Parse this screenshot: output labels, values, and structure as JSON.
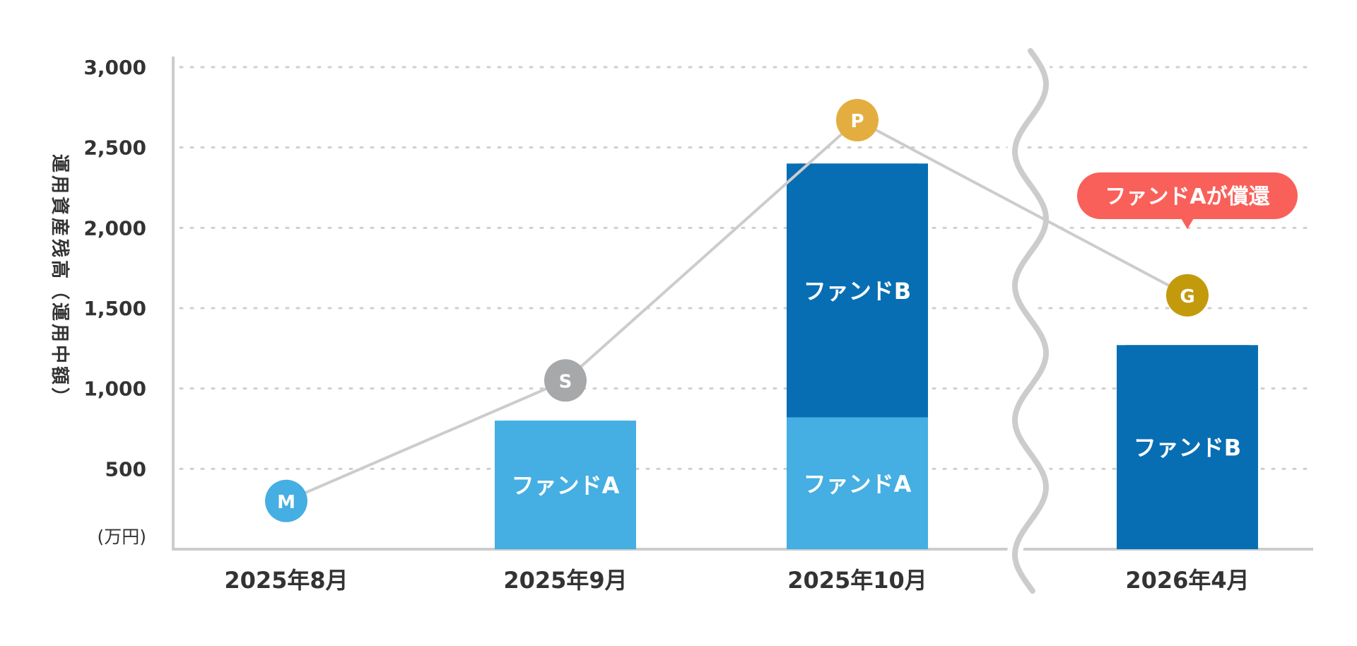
{
  "chart_data": {
    "type": "bar",
    "ylabel": "運用資産残高（運用中額）",
    "unit_label": "(万円)",
    "ylim": [
      0,
      3000
    ],
    "yticks": [
      "500",
      "1,000",
      "1,500",
      "2,000",
      "2,500",
      "3,000"
    ],
    "grid": true,
    "axis_break_between": [
      "2025年10月",
      "2026年4月"
    ],
    "categories": [
      "2025年8月",
      "2025年9月",
      "2025年10月",
      "2026年4月"
    ],
    "series": [
      {
        "name": "ファンドA",
        "color": "#45AEE2",
        "values": [
          0,
          800,
          820,
          0
        ],
        "labels": [
          "",
          "ファンドA",
          "ファンドA",
          ""
        ]
      },
      {
        "name": "ファンドB",
        "color": "#086EB3",
        "values": [
          0,
          0,
          1580,
          1270
        ],
        "labels": [
          "",
          "",
          "ファンドB",
          "ファンドB"
        ]
      }
    ],
    "line": {
      "color": "#CCCCCC",
      "values": [
        300,
        1050,
        2670,
        1580
      ],
      "markers": [
        {
          "label": "M",
          "color": "#45AEE2"
        },
        {
          "label": "S",
          "color": "#A7A8AA"
        },
        {
          "label": "P",
          "color": "#E3AE3F"
        },
        {
          "label": "G",
          "color": "#C49A0D"
        }
      ]
    },
    "annotations": [
      {
        "text": "ファンドAが償還",
        "category": "2026年4月",
        "color": "#F9605A"
      }
    ]
  }
}
